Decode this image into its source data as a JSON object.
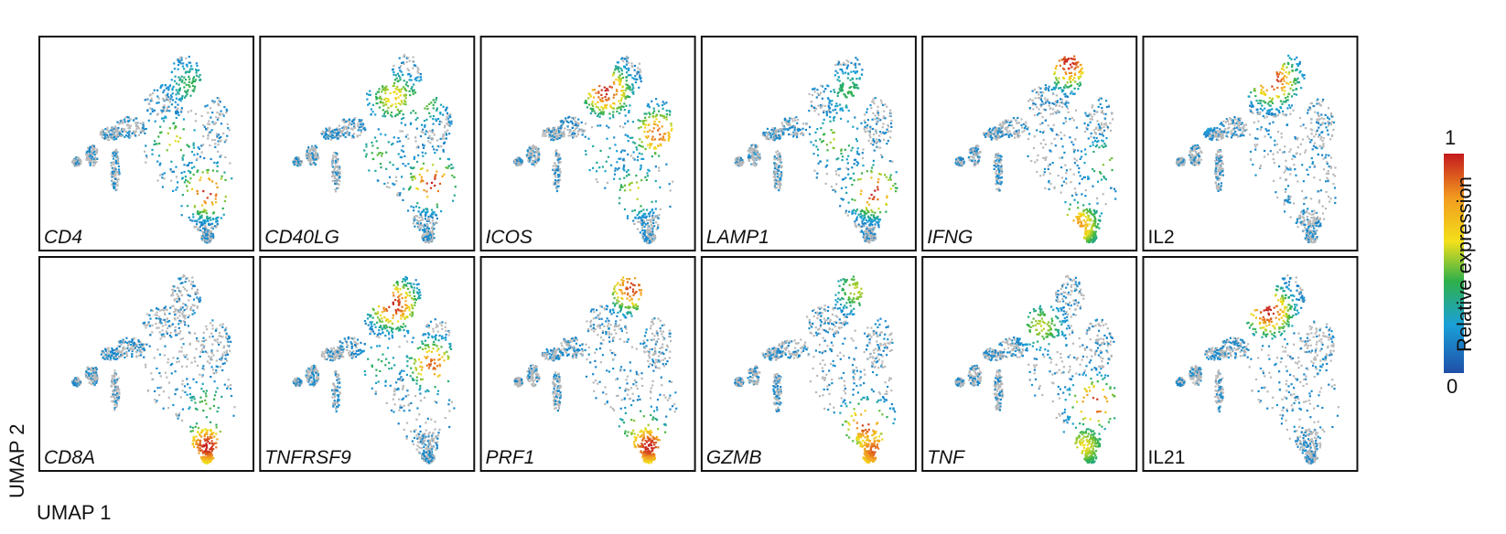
{
  "colors": {
    "no_expression": "#b9b9b9",
    "scale": [
      "#1f4fa8",
      "#1aa0d8",
      "#2fb04a",
      "#f3e01a",
      "#f29a1f",
      "#c4191d"
    ]
  },
  "colorbar": {
    "title": "Relative expression",
    "max_label": "1",
    "min_label": "0"
  },
  "axes": {
    "x_label": "UMAP 1",
    "y_label": "UMAP 2"
  },
  "chart_data": {
    "type": "scatter",
    "description_of_layout": "",
    "panels": [
      {
        "gene": "CD4",
        "italic": true,
        "hotspots": [
          [
            0.78,
            0.72,
            1.0
          ],
          [
            0.62,
            0.48,
            0.6
          ],
          [
            0.7,
            0.22,
            0.4
          ],
          [
            0.55,
            0.15,
            0.3
          ]
        ]
      },
      {
        "gene": "CD40LG",
        "italic": true,
        "hotspots": [
          [
            0.8,
            0.68,
            1.0
          ],
          [
            0.62,
            0.28,
            0.65
          ],
          [
            0.55,
            0.55,
            0.45
          ],
          [
            0.75,
            0.3,
            0.5
          ]
        ]
      },
      {
        "gene": "ICOS",
        "italic": true,
        "hotspots": [
          [
            0.58,
            0.25,
            1.0
          ],
          [
            0.82,
            0.45,
            0.9
          ],
          [
            0.72,
            0.72,
            0.6
          ],
          [
            0.55,
            0.55,
            0.35
          ]
        ]
      },
      {
        "gene": "LAMP1",
        "italic": true,
        "hotspots": [
          [
            0.8,
            0.72,
            1.0
          ],
          [
            0.62,
            0.48,
            0.55
          ],
          [
            0.68,
            0.25,
            0.4
          ]
        ]
      },
      {
        "gene": "IFNG",
        "italic": true,
        "hotspots": [
          [
            0.68,
            0.12,
            1.0
          ],
          [
            0.85,
            0.58,
            0.5
          ],
          [
            0.72,
            0.88,
            0.8
          ]
        ]
      },
      {
        "gene": "IL2",
        "italic": false,
        "hotspots": [
          [
            0.6,
            0.2,
            1.0
          ],
          [
            0.25,
            0.35,
            0.4
          ]
        ]
      },
      {
        "gene": "CD8A",
        "italic": true,
        "hotspots": [
          [
            0.78,
            0.68,
            0.45
          ],
          [
            0.78,
            0.88,
            1.0
          ]
        ]
      },
      {
        "gene": "TNFRSF9",
        "italic": true,
        "hotspots": [
          [
            0.62,
            0.22,
            1.0
          ],
          [
            0.8,
            0.5,
            0.9
          ],
          [
            0.55,
            0.5,
            0.4
          ]
        ]
      },
      {
        "gene": "PRF1",
        "italic": true,
        "hotspots": [
          [
            0.7,
            0.14,
            0.95
          ],
          [
            0.74,
            0.8,
            0.6
          ],
          [
            0.78,
            0.88,
            1.0
          ]
        ]
      },
      {
        "gene": "GZMB",
        "italic": true,
        "hotspots": [
          [
            0.72,
            0.15,
            0.55
          ],
          [
            0.76,
            0.78,
            0.95
          ],
          [
            0.8,
            0.9,
            0.9
          ]
        ]
      },
      {
        "gene": "TNF",
        "italic": true,
        "hotspots": [
          [
            0.8,
            0.68,
            1.0
          ],
          [
            0.55,
            0.32,
            0.55
          ],
          [
            0.75,
            0.88,
            0.6
          ]
        ]
      },
      {
        "gene": "IL21",
        "italic": false,
        "hotspots": [
          [
            0.58,
            0.25,
            1.0
          ]
        ]
      }
    ],
    "grid": false,
    "legend_position": "right"
  }
}
